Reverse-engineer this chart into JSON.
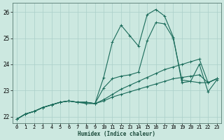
{
  "xlabel": "Humidex (Indice chaleur)",
  "xlim": [
    -0.5,
    23.5
  ],
  "ylim": [
    21.75,
    26.35
  ],
  "yticks": [
    22,
    23,
    24,
    25,
    26
  ],
  "xticks": [
    0,
    1,
    2,
    3,
    4,
    5,
    6,
    7,
    8,
    9,
    10,
    11,
    12,
    13,
    14,
    15,
    16,
    17,
    18,
    19,
    20,
    21,
    22,
    23
  ],
  "background_color": "#cce8e0",
  "grid_color": "#aacfc8",
  "line_color": "#1a6b5a",
  "lines": [
    [
      21.9,
      22.1,
      22.2,
      22.35,
      22.45,
      22.55,
      22.6,
      22.55,
      22.5,
      22.5,
      23.5,
      24.85,
      25.5,
      25.1,
      24.7,
      25.9,
      26.1,
      25.85,
      25.05,
      23.3,
      23.35,
      24.0,
      22.95,
      23.4
    ],
    [
      21.9,
      22.1,
      22.2,
      22.35,
      22.45,
      22.55,
      22.6,
      22.55,
      22.55,
      22.5,
      23.1,
      23.45,
      23.55,
      23.6,
      23.7,
      24.9,
      25.6,
      25.55,
      25.0,
      23.4,
      23.35,
      23.3,
      23.3,
      23.45
    ],
    [
      21.9,
      22.1,
      22.2,
      22.35,
      22.45,
      22.55,
      22.6,
      22.55,
      22.55,
      22.5,
      22.65,
      22.85,
      23.05,
      23.2,
      23.35,
      23.5,
      23.65,
      23.8,
      23.9,
      24.0,
      24.1,
      24.2,
      23.3,
      23.45
    ],
    [
      21.9,
      22.1,
      22.2,
      22.35,
      22.45,
      22.55,
      22.6,
      22.55,
      22.55,
      22.5,
      22.6,
      22.75,
      22.85,
      22.95,
      23.05,
      23.15,
      23.25,
      23.35,
      23.45,
      23.5,
      23.55,
      23.6,
      23.3,
      23.45
    ]
  ],
  "xlabel_fontsize": 5.5,
  "xlabel_fontweight": "bold",
  "tick_fontsize": 5.0,
  "line_width": 0.8,
  "marker_size": 2.5
}
